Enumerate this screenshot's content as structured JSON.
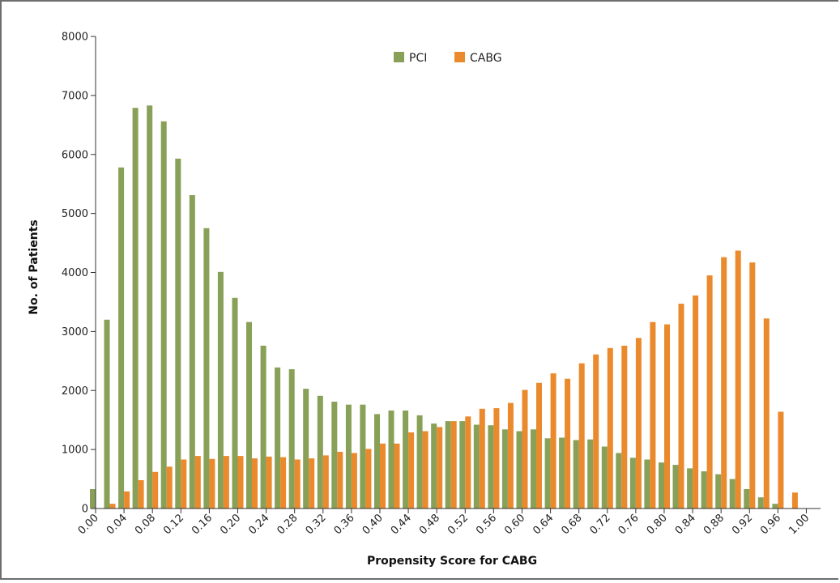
{
  "colors": {
    "pci": "#88a057",
    "cabg": "#ea8a2c",
    "axis": "#333333"
  },
  "chart_data": {
    "type": "bar",
    "xlabel": "Propensity Score for CABG",
    "ylabel": "No. of Patients",
    "ylim": [
      0,
      8000
    ],
    "yticks": [
      "0",
      "1000",
      "2000",
      "3000",
      "4000",
      "5000",
      "6000",
      "7000",
      "8000"
    ],
    "xtick_labels": [
      "0.00",
      "0.04",
      "0.08",
      "0.12",
      "0.16",
      "0.20",
      "0.24",
      "0.28",
      "0.32",
      "0.36",
      "0.40",
      "0.44",
      "0.48",
      "0.52",
      "0.56",
      "0.60",
      "0.64",
      "0.68",
      "0.72",
      "0.76",
      "0.80",
      "0.84",
      "0.88",
      "0.92",
      "0.96",
      "1.00"
    ],
    "x": [
      0.0,
      0.02,
      0.04,
      0.06,
      0.08,
      0.1,
      0.12,
      0.14,
      0.16,
      0.18,
      0.2,
      0.22,
      0.24,
      0.26,
      0.28,
      0.3,
      0.32,
      0.34,
      0.36,
      0.38,
      0.4,
      0.42,
      0.44,
      0.46,
      0.48,
      0.5,
      0.52,
      0.54,
      0.56,
      0.58,
      0.6,
      0.62,
      0.64,
      0.66,
      0.68,
      0.7,
      0.72,
      0.74,
      0.76,
      0.78,
      0.8,
      0.82,
      0.84,
      0.86,
      0.88,
      0.9,
      0.92,
      0.94,
      0.96,
      0.98,
      1.0
    ],
    "legend_position": "top-center",
    "grid": false,
    "series": [
      {
        "name": "PCI",
        "values": [
          330,
          3200,
          5780,
          6790,
          6830,
          6560,
          5930,
          5310,
          4750,
          4010,
          3570,
          3160,
          2760,
          2390,
          2360,
          2030,
          1910,
          1810,
          1760,
          1760,
          1600,
          1660,
          1660,
          1580,
          1440,
          1480,
          1480,
          1420,
          1410,
          1340,
          1310,
          1340,
          1190,
          1200,
          1160,
          1170,
          1050,
          940,
          860,
          830,
          780,
          740,
          680,
          630,
          580,
          500,
          330,
          190,
          80,
          0,
          0
        ]
      },
      {
        "name": "CABG",
        "values": [
          0,
          80,
          290,
          480,
          620,
          710,
          830,
          890,
          840,
          890,
          890,
          850,
          880,
          870,
          830,
          850,
          900,
          960,
          940,
          1010,
          1100,
          1100,
          1290,
          1310,
          1380,
          1480,
          1560,
          1690,
          1700,
          1790,
          2010,
          2130,
          2290,
          2200,
          2460,
          2610,
          2720,
          2760,
          2890,
          3160,
          3120,
          3470,
          3610,
          3950,
          4260,
          4370,
          4170,
          3220,
          1640,
          270,
          0
        ]
      }
    ]
  }
}
